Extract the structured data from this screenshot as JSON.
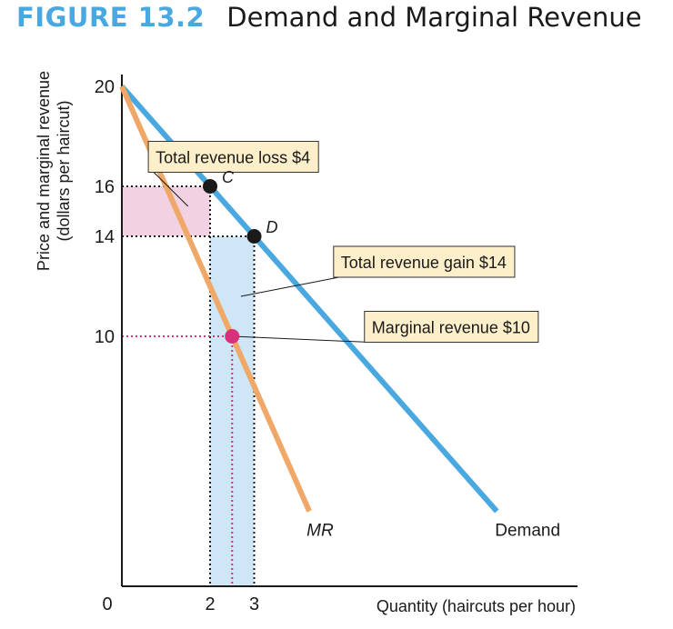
{
  "figure": {
    "label": "FIGURE 13.2",
    "title": "Demand and Marginal Revenue"
  },
  "chart_data": {
    "type": "line",
    "xlabel": "Quantity (haircuts per hour)",
    "ylabel_line1": "Price and marginal revenue",
    "ylabel_line2": "(dollars per haircut)",
    "xlim": [
      0,
      10.5
    ],
    "ylim": [
      0,
      20
    ],
    "x_ticks": [
      {
        "value": 0,
        "label": "0"
      },
      {
        "value": 2,
        "label": "2"
      },
      {
        "value": 3,
        "label": "3"
      }
    ],
    "y_ticks": [
      {
        "value": 20,
        "label": "20",
        "color": "#1a1a1a"
      },
      {
        "value": 16,
        "label": "16",
        "color": "#1a1a1a"
      },
      {
        "value": 14,
        "label": "14",
        "color": "#1a1a1a"
      },
      {
        "value": 10,
        "label": "10",
        "color": "#d6317a"
      }
    ],
    "series": [
      {
        "name": "Demand",
        "color": "#4aa8e0",
        "points": [
          [
            0,
            20
          ],
          [
            8.5,
            3
          ]
        ]
      },
      {
        "name": "MR",
        "color": "#f0a868",
        "points": [
          [
            0,
            20
          ],
          [
            4.25,
            3
          ]
        ]
      }
    ],
    "areas": [
      {
        "label": "Total revenue loss $4",
        "x": [
          0,
          2
        ],
        "y": [
          14,
          16
        ],
        "color": "#f2d2e2"
      },
      {
        "label": "Total revenue gain $14",
        "x": [
          2,
          3
        ],
        "y": [
          0,
          14
        ],
        "color": "#cfe6f7"
      }
    ],
    "points": [
      {
        "label": "C",
        "x": 2,
        "y": 16,
        "color": "#1a1a1a"
      },
      {
        "label": "D",
        "x": 3,
        "y": 14,
        "color": "#1a1a1a"
      },
      {
        "label": "",
        "x": 2.5,
        "y": 10,
        "color": "#d6317a"
      }
    ],
    "annotations": [
      {
        "text": "Total revenue loss $4",
        "box_x": 0.6,
        "box_y": 17.8,
        "box_anchor": "left",
        "point": [
          1.5,
          15.2
        ]
      },
      {
        "text": "Total revenue gain $14",
        "box_x": 4.8,
        "box_y": 13.6,
        "box_anchor": "left",
        "point": [
          2.7,
          11.6
        ]
      },
      {
        "text": "Marginal revenue $10",
        "box_x": 5.5,
        "box_y": 11.0,
        "box_anchor": "left",
        "point": [
          2.5,
          10
        ]
      }
    ]
  }
}
